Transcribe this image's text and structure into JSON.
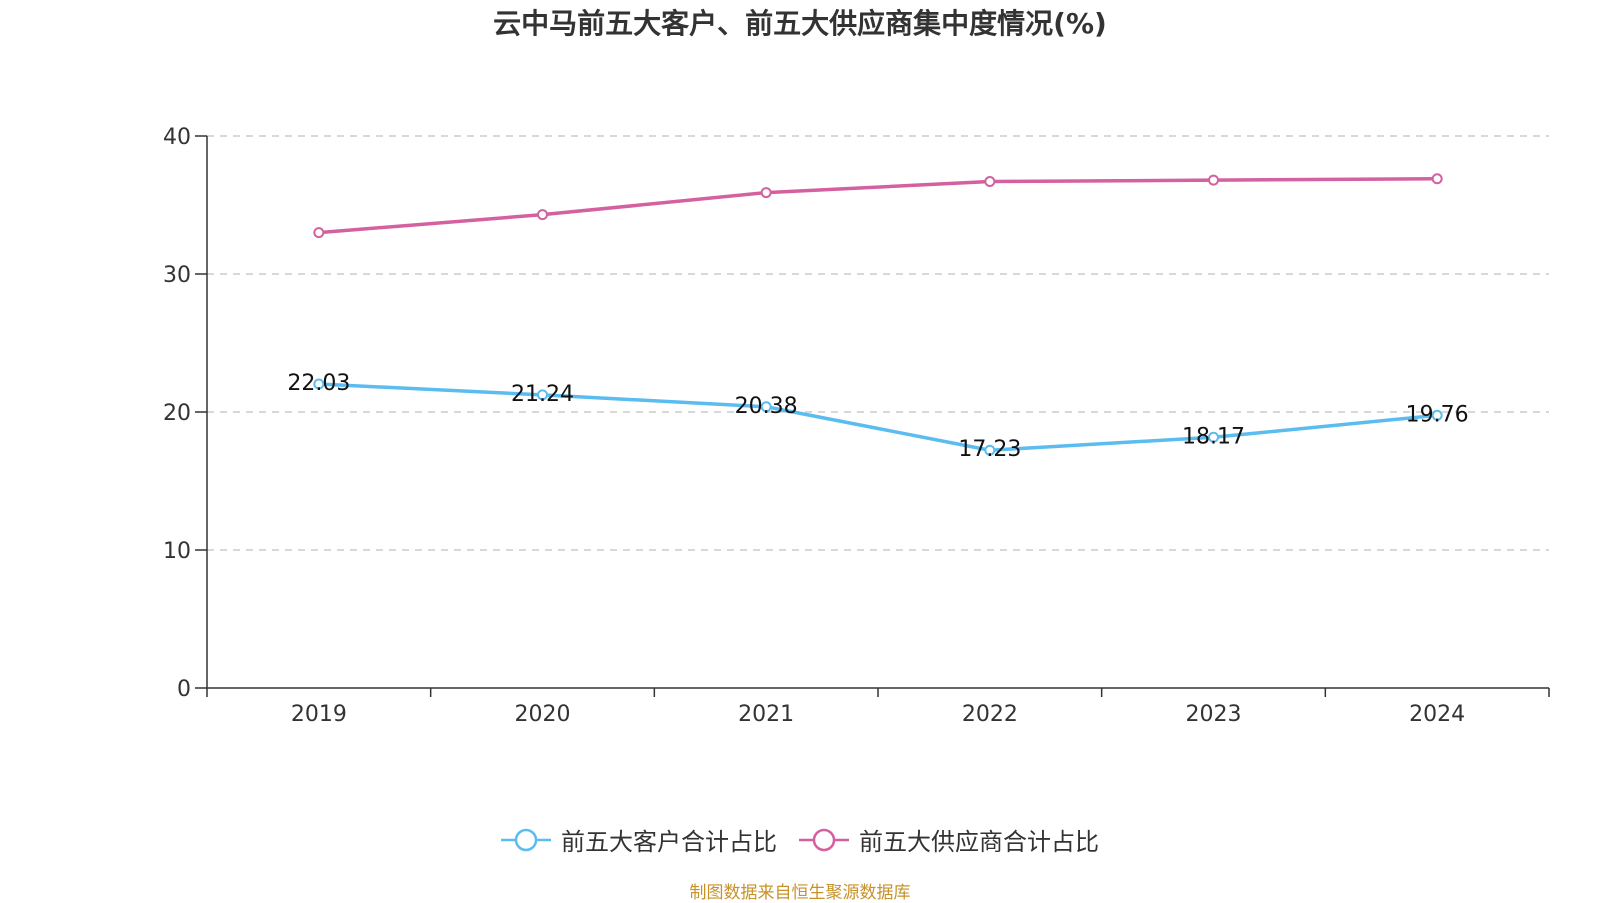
{
  "chart_data": {
    "type": "line",
    "title": "云中马前五大客户、前五大供应商集中度情况(%)",
    "categories": [
      "2019",
      "2020",
      "2021",
      "2022",
      "2023",
      "2024"
    ],
    "y_ticks": [
      "0",
      "10",
      "20",
      "30",
      "40"
    ],
    "ylim": [
      0,
      40
    ],
    "grid": "horizontal-dashed",
    "legend_position": "bottom-center",
    "series": [
      {
        "name": "前五大客户合计占比",
        "color": "#5bbcf0",
        "values": [
          22.03,
          21.24,
          20.38,
          17.23,
          18.17,
          19.76
        ],
        "labels": [
          "22.03",
          "21.24",
          "20.38",
          "17.23",
          "18.17",
          "19.76"
        ],
        "show_labels": true
      },
      {
        "name": "前五大供应商合计占比",
        "color": "#d4609f",
        "values": [
          33.0,
          34.3,
          35.9,
          36.7,
          36.8,
          36.9
        ],
        "show_labels": false
      }
    ]
  },
  "source_note": "制图数据来自恒生聚源数据库"
}
